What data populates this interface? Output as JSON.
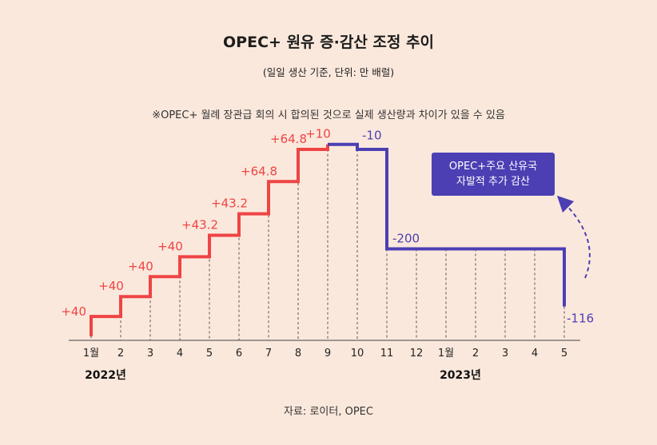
{
  "title": "OPEC+ 원유 증·감산 조정 추이",
  "subtitle": "(일일 생산 기준, 단위: 만 배럴)",
  "note": "※OPEC+ 월례 장관급 회의 시 합의된 것으로 실제 생산량과 차이가 있을 수 있음",
  "source": "자료: 로이터, OPEC",
  "callout": {
    "line1": "OPEC+주요 산유국",
    "line2": "자발적 추가 감산"
  },
  "colors": {
    "increase": "#ef4444",
    "decrease": "#4b3fb3",
    "background": "#fbe8dc"
  },
  "chart_data": {
    "type": "line",
    "step": true,
    "x": [
      "1월",
      "2",
      "3",
      "4",
      "5",
      "6",
      "7",
      "8",
      "9",
      "10",
      "11",
      "12",
      "1월",
      "2",
      "3",
      "4",
      "5"
    ],
    "year_labels": [
      {
        "label": "2022년",
        "index": 0
      },
      {
        "label": "2023년",
        "index": 12
      }
    ],
    "series": [
      {
        "name": "",
        "changes": [
          "+40",
          "+40",
          "+40",
          "+40",
          "+43.2",
          "+43.2",
          "+64.8",
          "+64.8",
          "+10",
          "-10",
          "-200",
          "",
          "",
          "",
          "",
          "",
          "-116"
        ],
        "levels": [
          40,
          80,
          120,
          160,
          203.2,
          246.4,
          311.2,
          376,
          386,
          376,
          176,
          176,
          176,
          176,
          176,
          176,
          60
        ]
      }
    ],
    "ylim": [
      0,
      400
    ],
    "grid": false
  }
}
